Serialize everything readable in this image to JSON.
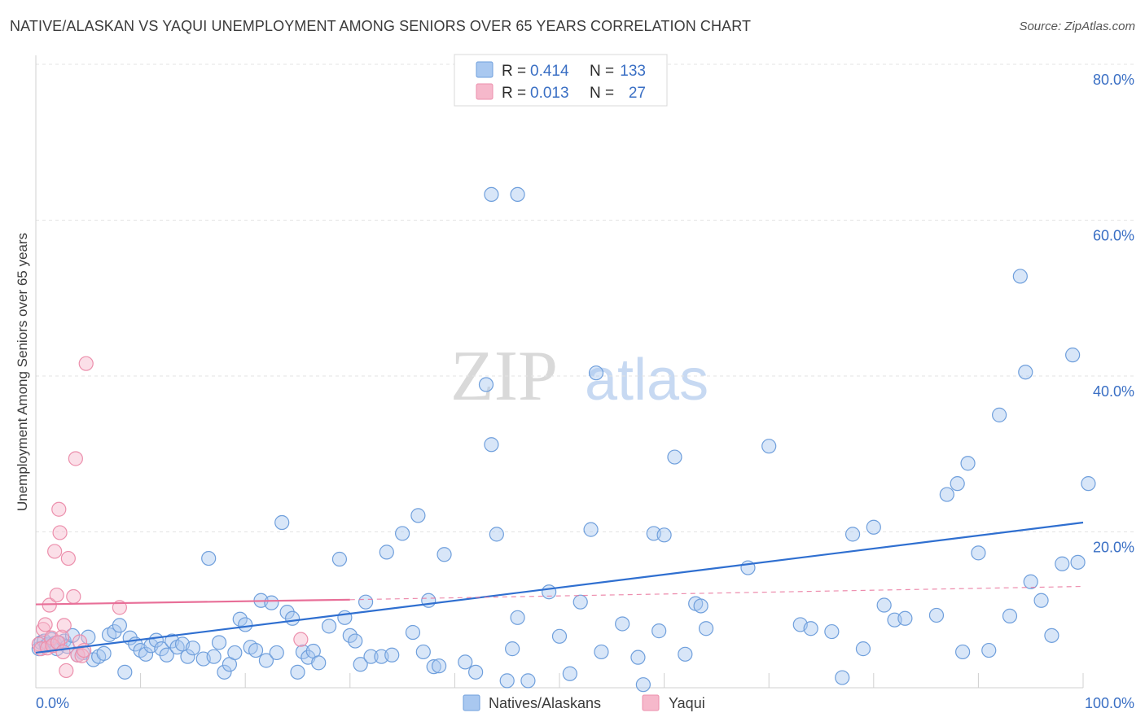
{
  "title": "NATIVE/ALASKAN VS YAQUI UNEMPLOYMENT AMONG SENIORS OVER 65 YEARS CORRELATION CHART",
  "source": "Source: ZipAtlas.com",
  "watermark": {
    "zip": "ZIP",
    "atlas": "atlas"
  },
  "legend": {
    "rows": [
      {
        "r_label": "R = ",
        "r_value": "0.414",
        "n_label": "N = ",
        "n_value": "133",
        "color": "#a9c8f0"
      },
      {
        "r_label": "R = ",
        "r_value": "0.013",
        "n_label": "N = ",
        "n_value": "27",
        "color": "#f6b8cb"
      }
    ]
  },
  "bottom_legend": [
    {
      "label": "Natives/Alaskans",
      "color": "#a9c8f0"
    },
    {
      "label": "Yaqui",
      "color": "#f6b8cb"
    }
  ],
  "chart_data": {
    "type": "scatter",
    "title": "NATIVE/ALASKAN VS YAQUI UNEMPLOYMENT AMONG SENIORS OVER 65 YEARS CORRELATION CHART",
    "xlabel": "",
    "ylabel": "Unemployment Among Seniors over 65 years",
    "xlim": [
      0,
      100
    ],
    "ylim": [
      0,
      80
    ],
    "x_tick_labels": [
      "0.0%",
      "100.0%"
    ],
    "y_ticks": [
      20,
      40,
      60,
      80
    ],
    "y_tick_labels": [
      "20.0%",
      "40.0%",
      "60.0%",
      "80.0%"
    ],
    "grid": true,
    "series": [
      {
        "name": "Natives/Alaskans",
        "color": "#a9c8f0",
        "stroke": "#6f9fdc",
        "trend": {
          "x": [
            0,
            100
          ],
          "y": [
            4.5,
            21.2
          ],
          "color": "#2f6fd0"
        },
        "points": [
          [
            0.3,
            5.0
          ],
          [
            0.5,
            5.8
          ],
          [
            0.8,
            6.0
          ],
          [
            1.0,
            5.4
          ],
          [
            1.2,
            5.6
          ],
          [
            1.5,
            6.2
          ],
          [
            1.8,
            5.7
          ],
          [
            2.0,
            5.0
          ],
          [
            2.3,
            5.7
          ],
          [
            2.7,
            6.0
          ],
          [
            3.0,
            5.3
          ],
          [
            3.5,
            6.7
          ],
          [
            4.0,
            4.2
          ],
          [
            4.5,
            4.5
          ],
          [
            5.0,
            6.5
          ],
          [
            5.5,
            3.6
          ],
          [
            6.0,
            4.0
          ],
          [
            6.5,
            4.4
          ],
          [
            7.0,
            6.8
          ],
          [
            7.5,
            7.2
          ],
          [
            8.0,
            8.0
          ],
          [
            8.5,
            2.0
          ],
          [
            9.0,
            6.4
          ],
          [
            9.5,
            5.6
          ],
          [
            10.0,
            4.8
          ],
          [
            10.5,
            4.3
          ],
          [
            11.0,
            5.4
          ],
          [
            11.5,
            6.1
          ],
          [
            12.0,
            5.0
          ],
          [
            12.5,
            4.2
          ],
          [
            13.0,
            6.0
          ],
          [
            13.5,
            5.2
          ],
          [
            14.0,
            5.6
          ],
          [
            14.5,
            4.0
          ],
          [
            15.0,
            5.1
          ],
          [
            16.0,
            3.7
          ],
          [
            16.5,
            16.6
          ],
          [
            17.0,
            4.0
          ],
          [
            17.5,
            5.8
          ],
          [
            18.0,
            2.0
          ],
          [
            18.5,
            3.0
          ],
          [
            19.0,
            4.5
          ],
          [
            19.5,
            8.8
          ],
          [
            20.0,
            8.1
          ],
          [
            20.5,
            5.2
          ],
          [
            21.0,
            4.8
          ],
          [
            21.5,
            11.2
          ],
          [
            22.0,
            3.5
          ],
          [
            22.5,
            10.9
          ],
          [
            23.0,
            4.5
          ],
          [
            23.5,
            21.2
          ],
          [
            24.0,
            9.7
          ],
          [
            24.5,
            8.9
          ],
          [
            25.0,
            2.0
          ],
          [
            25.5,
            4.6
          ],
          [
            26.0,
            3.9
          ],
          [
            26.5,
            4.7
          ],
          [
            27.0,
            3.2
          ],
          [
            28.0,
            7.9
          ],
          [
            29.0,
            16.5
          ],
          [
            29.5,
            9.0
          ],
          [
            30.0,
            6.7
          ],
          [
            30.5,
            6.0
          ],
          [
            31.0,
            3.0
          ],
          [
            31.5,
            11.0
          ],
          [
            32.0,
            4.0
          ],
          [
            33.0,
            4.0
          ],
          [
            33.5,
            17.4
          ],
          [
            34.0,
            4.2
          ],
          [
            35.0,
            19.8
          ],
          [
            36.0,
            7.1
          ],
          [
            36.5,
            22.1
          ],
          [
            37.0,
            4.6
          ],
          [
            37.5,
            11.2
          ],
          [
            38.0,
            2.7
          ],
          [
            38.5,
            2.8
          ],
          [
            39.0,
            17.1
          ],
          [
            41.0,
            3.3
          ],
          [
            42.0,
            2.0
          ],
          [
            43.0,
            38.9
          ],
          [
            43.5,
            31.2
          ],
          [
            44.0,
            19.7
          ],
          [
            45.0,
            0.9
          ],
          [
            45.5,
            5.0
          ],
          [
            46.0,
            9.0
          ],
          [
            47.0,
            0.9
          ],
          [
            49.0,
            12.3
          ],
          [
            50.0,
            6.6
          ],
          [
            51.0,
            1.8
          ],
          [
            52.0,
            11.0
          ],
          [
            53.0,
            20.3
          ],
          [
            53.5,
            40.4
          ],
          [
            54.0,
            4.6
          ],
          [
            56.0,
            8.2
          ],
          [
            57.5,
            3.9
          ],
          [
            58.0,
            0.4
          ],
          [
            59.0,
            19.8
          ],
          [
            59.5,
            7.3
          ],
          [
            60.0,
            19.6
          ],
          [
            61.0,
            29.6
          ],
          [
            62.0,
            4.3
          ],
          [
            63.0,
            10.8
          ],
          [
            63.5,
            10.5
          ],
          [
            64.0,
            7.6
          ],
          [
            68.0,
            15.4
          ],
          [
            70.0,
            31.0
          ],
          [
            73.0,
            8.1
          ],
          [
            74.0,
            7.6
          ],
          [
            76.0,
            7.2
          ],
          [
            77.0,
            1.3
          ],
          [
            78.0,
            19.7
          ],
          [
            79.0,
            5.0
          ],
          [
            80.0,
            20.6
          ],
          [
            81.0,
            10.6
          ],
          [
            82.0,
            8.7
          ],
          [
            83.0,
            8.9
          ],
          [
            86.0,
            9.3
          ],
          [
            87.0,
            24.8
          ],
          [
            88.0,
            26.2
          ],
          [
            88.5,
            4.6
          ],
          [
            89.0,
            28.8
          ],
          [
            90.0,
            17.3
          ],
          [
            91.0,
            4.8
          ],
          [
            92.0,
            35.0
          ],
          [
            93.0,
            9.2
          ],
          [
            94.0,
            52.8
          ],
          [
            94.5,
            40.5
          ],
          [
            95.0,
            13.6
          ],
          [
            96.0,
            11.2
          ],
          [
            97.0,
            6.7
          ],
          [
            98.0,
            15.9
          ],
          [
            99.0,
            42.7
          ],
          [
            99.5,
            16.1
          ],
          [
            101.0,
            26.2
          ],
          [
            43.5,
            63.3
          ],
          [
            46.0,
            63.3
          ]
        ]
      },
      {
        "name": "Yaqui",
        "color": "#f6b8cb",
        "stroke": "#ec8fac",
        "trend": {
          "x": [
            0,
            30
          ],
          "y": [
            10.7,
            11.3
          ],
          "color": "#e86f98",
          "dashed_to": [
            100,
            13.0
          ]
        },
        "points": [
          [
            0.3,
            5.6
          ],
          [
            0.5,
            5.0
          ],
          [
            0.7,
            7.5
          ],
          [
            0.9,
            8.1
          ],
          [
            1.1,
            5.1
          ],
          [
            1.3,
            10.6
          ],
          [
            1.5,
            6.4
          ],
          [
            1.8,
            17.5
          ],
          [
            2.0,
            11.9
          ],
          [
            2.2,
            22.9
          ],
          [
            2.3,
            19.9
          ],
          [
            2.5,
            6.5
          ],
          [
            2.7,
            8.0
          ],
          [
            2.9,
            2.2
          ],
          [
            3.1,
            16.6
          ],
          [
            3.6,
            11.7
          ],
          [
            3.8,
            29.4
          ],
          [
            4.0,
            4.2
          ],
          [
            4.2,
            5.9
          ],
          [
            4.4,
            4.1
          ],
          [
            4.6,
            4.8
          ],
          [
            4.8,
            41.6
          ],
          [
            8.0,
            10.3
          ],
          [
            25.3,
            6.2
          ],
          [
            1.6,
            5.4
          ],
          [
            2.1,
            5.8
          ],
          [
            2.6,
            4.6
          ]
        ]
      }
    ]
  }
}
